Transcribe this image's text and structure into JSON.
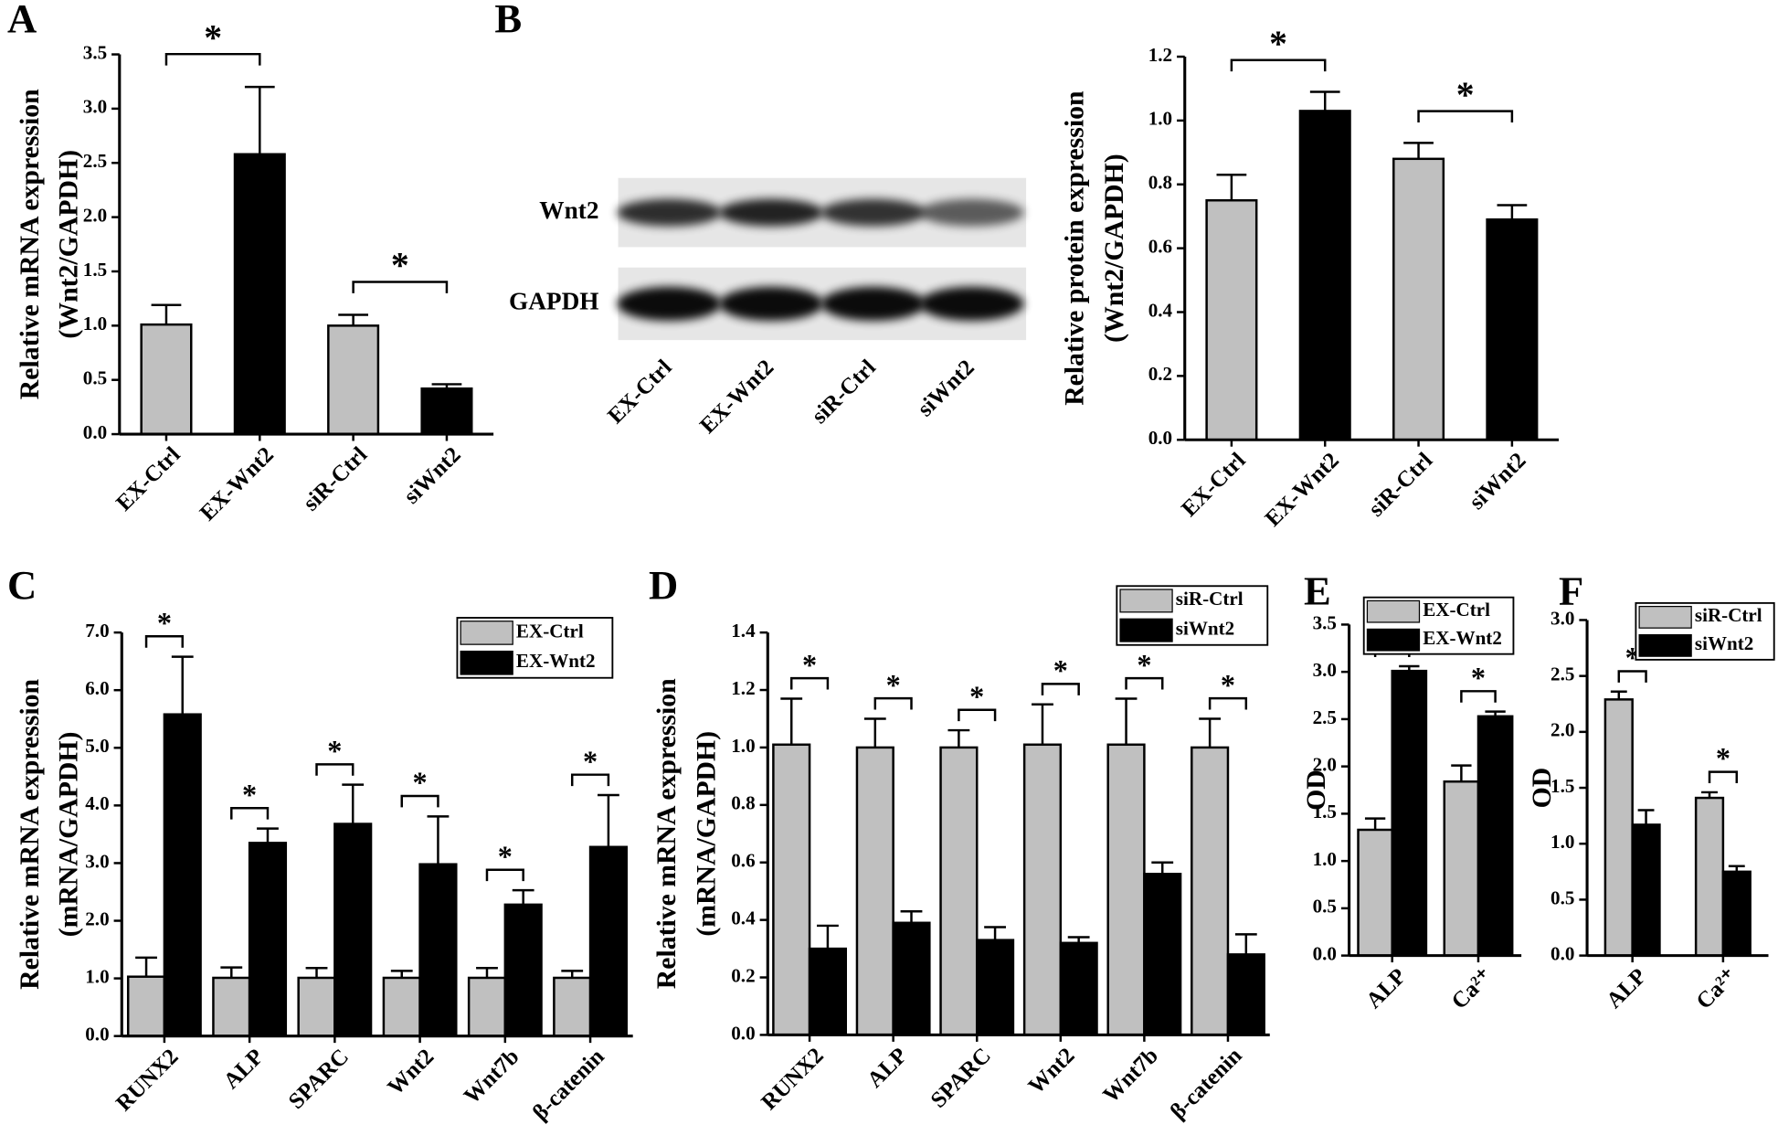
{
  "chart_data": [
    {
      "type": "bar",
      "panel": "A",
      "ylabel": [
        "Relative mRNA expression",
        "(Wnt2/GAPDH)"
      ],
      "categories": [
        "EX-Ctrl",
        "EX-Wnt2",
        "siR-Ctrl",
        "siWnt2"
      ],
      "values": [
        1.01,
        2.58,
        1.0,
        0.42
      ],
      "errors": [
        0.18,
        0.62,
        0.1,
        0.04
      ],
      "colors": [
        "#c0c0c0",
        "#000000",
        "#c0c0c0",
        "#000000"
      ],
      "ylim": [
        0,
        3.5
      ],
      "yticks": [
        {
          "value": 0,
          "label": "0.0"
        },
        {
          "value": 0.5,
          "label": "0.5"
        },
        {
          "value": 1,
          "label": "1.0"
        },
        {
          "value": 1.5,
          "label": "1.5"
        },
        {
          "value": 2,
          "label": "2.0"
        },
        {
          "value": 2.5,
          "label": "2.5"
        },
        {
          "value": 3,
          "label": "3.0"
        },
        {
          "value": 3.5,
          "label": "3.5"
        }
      ],
      "annotations": [
        "*",
        "*"
      ]
    },
    {
      "type": "bar",
      "panel": "B",
      "ylabel": [
        "Relative protein expression",
        "(Wnt2/GAPDH)"
      ],
      "blot": {
        "rows": [
          "Wnt2",
          "GAPDH"
        ],
        "lanes": [
          "EX-Ctrl",
          "EX-Wnt2",
          "siR-Ctrl",
          "siWnt2"
        ]
      },
      "categories": [
        "EX-Ctrl",
        "EX-Wnt2",
        "siR-Ctrl",
        "siWnt2"
      ],
      "values": [
        0.75,
        1.03,
        0.88,
        0.69
      ],
      "errors": [
        0.08,
        0.06,
        0.05,
        0.045
      ],
      "colors": [
        "#c0c0c0",
        "#000000",
        "#c0c0c0",
        "#000000"
      ],
      "ylim": [
        0,
        1.2
      ],
      "yticks": [
        {
          "value": 0,
          "label": "0.0"
        },
        {
          "value": 0.2,
          "label": "0.2"
        },
        {
          "value": 0.4,
          "label": "0.4"
        },
        {
          "value": 0.6,
          "label": "0.6"
        },
        {
          "value": 0.8,
          "label": "0.8"
        },
        {
          "value": 1,
          "label": "1.0"
        },
        {
          "value": 1.2,
          "label": "1.2"
        }
      ],
      "annotations": [
        "*",
        "*"
      ]
    },
    {
      "type": "bar",
      "panel": "C",
      "ylabel": [
        "Relative mRNA expression",
        "(mRNA/GAPDH)"
      ],
      "categories": [
        "RUNX2",
        "ALP",
        "SPARC",
        "Wnt2",
        "Wnt7b",
        "β-catenin"
      ],
      "series": [
        {
          "name": "EX-Ctrl",
          "color": "#c0c0c0",
          "values": [
            1.03,
            1.01,
            1.01,
            1.01,
            1.01,
            1.01
          ],
          "errors": [
            0.33,
            0.18,
            0.17,
            0.12,
            0.17,
            0.12
          ]
        },
        {
          "name": "EX-Wnt2",
          "color": "#000000",
          "values": [
            5.58,
            3.35,
            3.68,
            2.98,
            2.28,
            3.28
          ],
          "errors": [
            1.0,
            0.25,
            0.68,
            0.83,
            0.25,
            0.9
          ]
        }
      ],
      "ylim": [
        0,
        7
      ],
      "yticks": [
        {
          "value": 0,
          "label": "0.0"
        },
        {
          "value": 1,
          "label": "1.0"
        },
        {
          "value": 2,
          "label": "2.0"
        },
        {
          "value": 3,
          "label": "3.0"
        },
        {
          "value": 4,
          "label": "4.0"
        },
        {
          "value": 5,
          "label": "5.0"
        },
        {
          "value": 6,
          "label": "6.0"
        },
        {
          "value": 7,
          "label": "7.0"
        }
      ],
      "legend": "upper right",
      "annotations": [
        "*",
        "*",
        "*",
        "*",
        "*",
        "*"
      ]
    },
    {
      "type": "bar",
      "panel": "D",
      "ylabel": [
        "Relative mRNA expression",
        "(mRNA/GAPDH)"
      ],
      "categories": [
        "RUNX2",
        "ALP",
        "SPARC",
        "Wnt2",
        "Wnt7b",
        "β-catenin"
      ],
      "series": [
        {
          "name": "siR-Ctrl",
          "color": "#c0c0c0",
          "values": [
            1.01,
            1.0,
            1.0,
            1.01,
            1.01,
            1.0
          ],
          "errors": [
            0.16,
            0.1,
            0.06,
            0.14,
            0.16,
            0.1
          ]
        },
        {
          "name": "siWnt2",
          "color": "#000000",
          "values": [
            0.3,
            0.39,
            0.33,
            0.32,
            0.56,
            0.28
          ],
          "errors": [
            0.08,
            0.04,
            0.045,
            0.02,
            0.04,
            0.07
          ]
        }
      ],
      "ylim": [
        0,
        1.4
      ],
      "yticks": [
        {
          "value": 0,
          "label": "0.0"
        },
        {
          "value": 0.2,
          "label": "0.2"
        },
        {
          "value": 0.4,
          "label": "0.4"
        },
        {
          "value": 0.6,
          "label": "0.6"
        },
        {
          "value": 0.8,
          "label": "0.8"
        },
        {
          "value": 1,
          "label": "1.0"
        },
        {
          "value": 1.2,
          "label": "1.2"
        },
        {
          "value": 1.4,
          "label": "1.4"
        }
      ],
      "legend": "upper right",
      "annotations": [
        "*",
        "*",
        "*",
        "*",
        "*",
        "*"
      ]
    },
    {
      "type": "bar",
      "panel": "E",
      "ylabel": [
        "OD"
      ],
      "categories": [
        "ALP",
        "Ca²⁺"
      ],
      "series": [
        {
          "name": "EX-Ctrl",
          "color": "#c0c0c0",
          "values": [
            1.33,
            1.84
          ],
          "errors": [
            0.12,
            0.17
          ]
        },
        {
          "name": "EX-Wnt2",
          "color": "#000000",
          "values": [
            3.01,
            2.53
          ],
          "errors": [
            0.05,
            0.05
          ]
        }
      ],
      "ylim": [
        0,
        3.5
      ],
      "yticks": [
        {
          "value": 0,
          "label": "0.0"
        },
        {
          "value": 0.5,
          "label": "0.5"
        },
        {
          "value": 1,
          "label": "1.0"
        },
        {
          "value": 1.5,
          "label": "1.5"
        },
        {
          "value": 2,
          "label": "2.0"
        },
        {
          "value": 2.5,
          "label": "2.5"
        },
        {
          "value": 3,
          "label": "3.0"
        },
        {
          "value": 3.5,
          "label": "3.5"
        }
      ],
      "legend": "upper right",
      "annotations": [
        "*",
        "*"
      ]
    },
    {
      "type": "bar",
      "panel": "F",
      "ylabel": [
        "OD"
      ],
      "categories": [
        "ALP",
        "Ca²⁺"
      ],
      "series": [
        {
          "name": "siR-Ctrl",
          "color": "#c0c0c0",
          "values": [
            2.29,
            1.41
          ],
          "errors": [
            0.07,
            0.05
          ]
        },
        {
          "name": "siWnt2",
          "color": "#000000",
          "values": [
            1.17,
            0.75
          ],
          "errors": [
            0.13,
            0.05
          ]
        }
      ],
      "ylim": [
        0,
        3
      ],
      "yticks": [
        {
          "value": 0,
          "label": "0.0"
        },
        {
          "value": 0.5,
          "label": "0.5"
        },
        {
          "value": 1,
          "label": "1.0"
        },
        {
          "value": 1.5,
          "label": "1.5"
        },
        {
          "value": 2,
          "label": "2.0"
        },
        {
          "value": 2.5,
          "label": "2.5"
        },
        {
          "value": 3,
          "label": "3.0"
        }
      ],
      "legend": "upper right",
      "annotations": [
        "*",
        "*"
      ]
    }
  ]
}
